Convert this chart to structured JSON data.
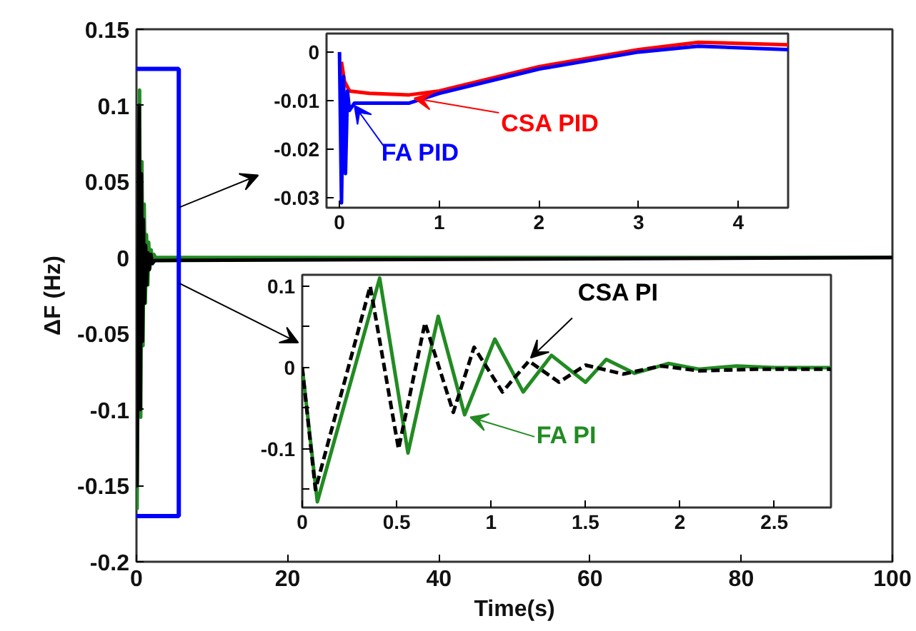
{
  "chart_data": [
    {
      "type": "line",
      "xlabel": "Time(s)",
      "ylabel": "ΔF (Hz)",
      "xlim": [
        0,
        100
      ],
      "ylim": [
        -0.2,
        0.15
      ],
      "xticks": [
        0,
        20,
        40,
        60,
        80,
        100
      ],
      "yticks": [
        -0.2,
        -0.15,
        -0.1,
        -0.05,
        0,
        0.05,
        0.1,
        0.15
      ],
      "grid": false,
      "series": [
        {
          "color": "#228b22",
          "line_style": "solid",
          "x": [
            0,
            0.08,
            0.41,
            0.56,
            0.72,
            0.86,
            1.02,
            1.17,
            1.32,
            1.5,
            1.61,
            1.76,
            1.94,
            2.1,
            2.3,
            2.5,
            2.8,
            100
          ],
          "values": [
            0,
            -0.165,
            0.11,
            -0.105,
            0.063,
            -0.058,
            0.035,
            -0.03,
            0.015,
            -0.018,
            0.01,
            -0.007,
            0.005,
            -0.002,
            0.002,
            0,
            0,
            0
          ]
        },
        {
          "color": "#000000",
          "line_style": "solid",
          "x": [
            0,
            0.07,
            0.36,
            0.51,
            0.65,
            0.8,
            0.91,
            1.06,
            1.2,
            1.36,
            1.5,
            1.7,
            1.9,
            2.1,
            2.4,
            2.8,
            100
          ],
          "values": [
            0,
            -0.15,
            0.1,
            -0.1,
            0.055,
            -0.055,
            0.025,
            -0.03,
            0.008,
            -0.018,
            0.003,
            -0.008,
            0.002,
            -0.004,
            -0.002,
            -0.002,
            0
          ]
        }
      ]
    },
    {
      "type": "line",
      "xlim": [
        -0.13,
        4.5
      ],
      "ylim": [
        -0.032,
        0.0038
      ],
      "xticks": [
        0,
        1,
        2,
        3,
        4
      ],
      "yticks": [
        -0.03,
        -0.02,
        -0.01,
        0
      ],
      "grid": false,
      "series": [
        {
          "name": "CSA PID",
          "color": "#ff0000",
          "line_style": "solid",
          "x": [
            0.02,
            0.05,
            0.1,
            0.3,
            0.7,
            1,
            2,
            3,
            3.6,
            4.5
          ],
          "values": [
            -0.002,
            -0.006,
            -0.008,
            -0.0085,
            -0.0088,
            -0.008,
            -0.003,
            0.0005,
            0.002,
            0.0015
          ]
        },
        {
          "name": "FA PID",
          "color": "#0000ff",
          "line_style": "solid",
          "x": [
            0,
            0.02,
            0.04,
            0.06,
            0.08,
            0.1,
            0.15,
            0.7,
            1,
            2,
            3,
            3.6,
            4.5
          ],
          "values": [
            0,
            -0.031,
            -0.005,
            -0.025,
            -0.008,
            -0.012,
            -0.0105,
            -0.0105,
            -0.0085,
            -0.0035,
            0,
            0.0012,
            0.0005
          ]
        }
      ]
    },
    {
      "type": "line",
      "xlim": [
        0,
        2.8
      ],
      "ylim": [
        -0.172,
        0.114
      ],
      "xticks": [
        0,
        0.5,
        1,
        1.5,
        2,
        2.5
      ],
      "yticks": [
        {
          "value": -0.15,
          "label": null
        },
        -0.1,
        {
          "value": -0.05,
          "label": null
        },
        0,
        {
          "value": 0.05,
          "label": null
        },
        0.1
      ],
      "grid": false,
      "series": [
        {
          "name": "FA PI",
          "color": "#228b22",
          "line_style": "solid",
          "x": [
            0,
            0.08,
            0.41,
            0.56,
            0.72,
            0.86,
            1.02,
            1.17,
            1.32,
            1.5,
            1.61,
            1.76,
            1.94,
            2.1,
            2.3,
            2.5,
            2.8
          ],
          "values": [
            0,
            -0.165,
            0.11,
            -0.105,
            0.063,
            -0.058,
            0.035,
            -0.03,
            0.015,
            -0.018,
            0.01,
            -0.007,
            0.005,
            -0.002,
            0.002,
            0,
            0
          ]
        },
        {
          "name": "CSA PI",
          "color": "#000000",
          "line_style": "dashed",
          "x": [
            0,
            0.07,
            0.36,
            0.51,
            0.65,
            0.8,
            0.91,
            1.06,
            1.2,
            1.36,
            1.5,
            1.7,
            1.9,
            2.1,
            2.4,
            2.8
          ],
          "values": [
            0,
            -0.15,
            0.1,
            -0.1,
            0.055,
            -0.055,
            0.025,
            -0.03,
            0.008,
            -0.018,
            0.003,
            -0.008,
            0.002,
            -0.004,
            -0.002,
            -0.002
          ]
        }
      ]
    }
  ]
}
